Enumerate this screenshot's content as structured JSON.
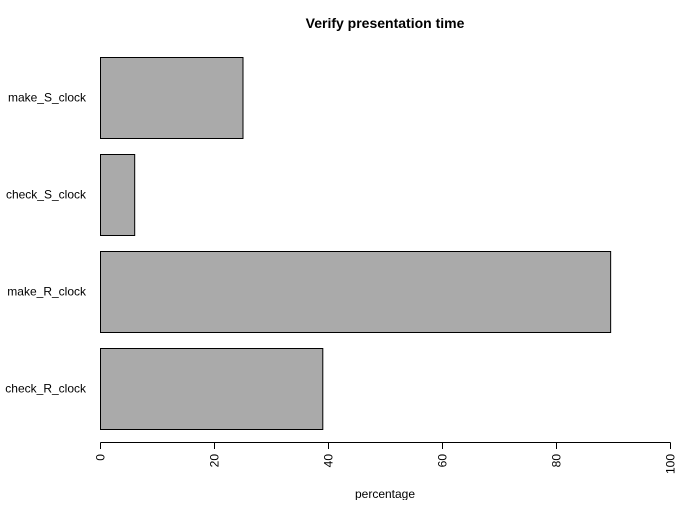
{
  "chart_data": {
    "type": "bar",
    "orientation": "horizontal",
    "title": "Verify presentation time",
    "xlabel": "percentage",
    "ylabel": "",
    "categories": [
      "make_S_clock",
      "check_S_clock",
      "make_R_clock",
      "check_R_clock"
    ],
    "values": [
      25,
      6,
      89.5,
      39
    ],
    "xlim": [
      0,
      100
    ],
    "xticks": [
      "0",
      "20",
      "40",
      "60",
      "80",
      "100"
    ],
    "bar_color": "#aaaaaa",
    "bar_border_color": "#000000",
    "grid": false,
    "legend": "none"
  }
}
